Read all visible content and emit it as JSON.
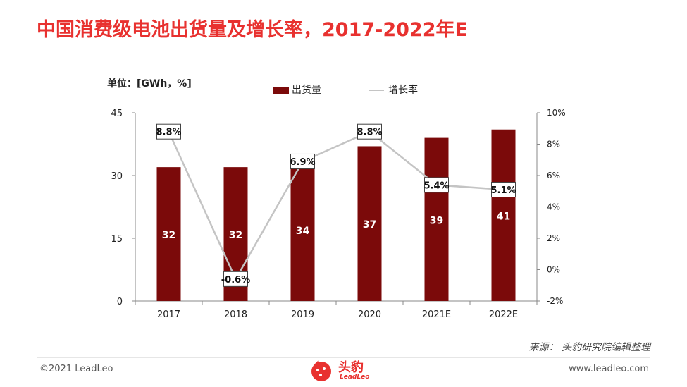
{
  "title": "中国消费级电池出货量及增长率，2017-2022年E",
  "unit_label": "单位：[GWh，%]",
  "legend": {
    "bar": "出货量",
    "line": "增长率"
  },
  "source": "来源：   头豹研究院编辑整理",
  "footer": {
    "copyright": "©2021 LeadLeo",
    "website": "www.leadleo.com"
  },
  "logo": {
    "name": "头豹",
    "en": "LeadLeo"
  },
  "colors": {
    "bar": "#7b0a0a",
    "line": "#c4c4c4",
    "title": "#e8312f"
  },
  "chart_data": {
    "type": "bar",
    "categories": [
      "2017",
      "2018",
      "2019",
      "2020",
      "2021E",
      "2022E"
    ],
    "series": [
      {
        "name": "出货量",
        "type": "bar",
        "axis": "left",
        "values": [
          32,
          32,
          34,
          37,
          39,
          41
        ],
        "labels": [
          "32",
          "32",
          "34",
          "37",
          "39",
          "41"
        ]
      },
      {
        "name": "增长率",
        "type": "line",
        "axis": "right",
        "values": [
          8.8,
          -0.6,
          6.9,
          8.8,
          5.4,
          5.1
        ],
        "labels": [
          "8.8%",
          "-0.6%",
          "6.9%",
          "8.8%",
          "5.4%",
          "5.1%"
        ]
      }
    ],
    "y_left": {
      "min": 0,
      "max": 45,
      "ticks": [
        "0",
        "15",
        "30",
        "45"
      ]
    },
    "y_right": {
      "min": -2,
      "max": 10,
      "ticks": [
        "-2%",
        "0%",
        "2%",
        "4%",
        "6%",
        "8%",
        "10%"
      ]
    },
    "grid": false,
    "legend_position": "top"
  }
}
